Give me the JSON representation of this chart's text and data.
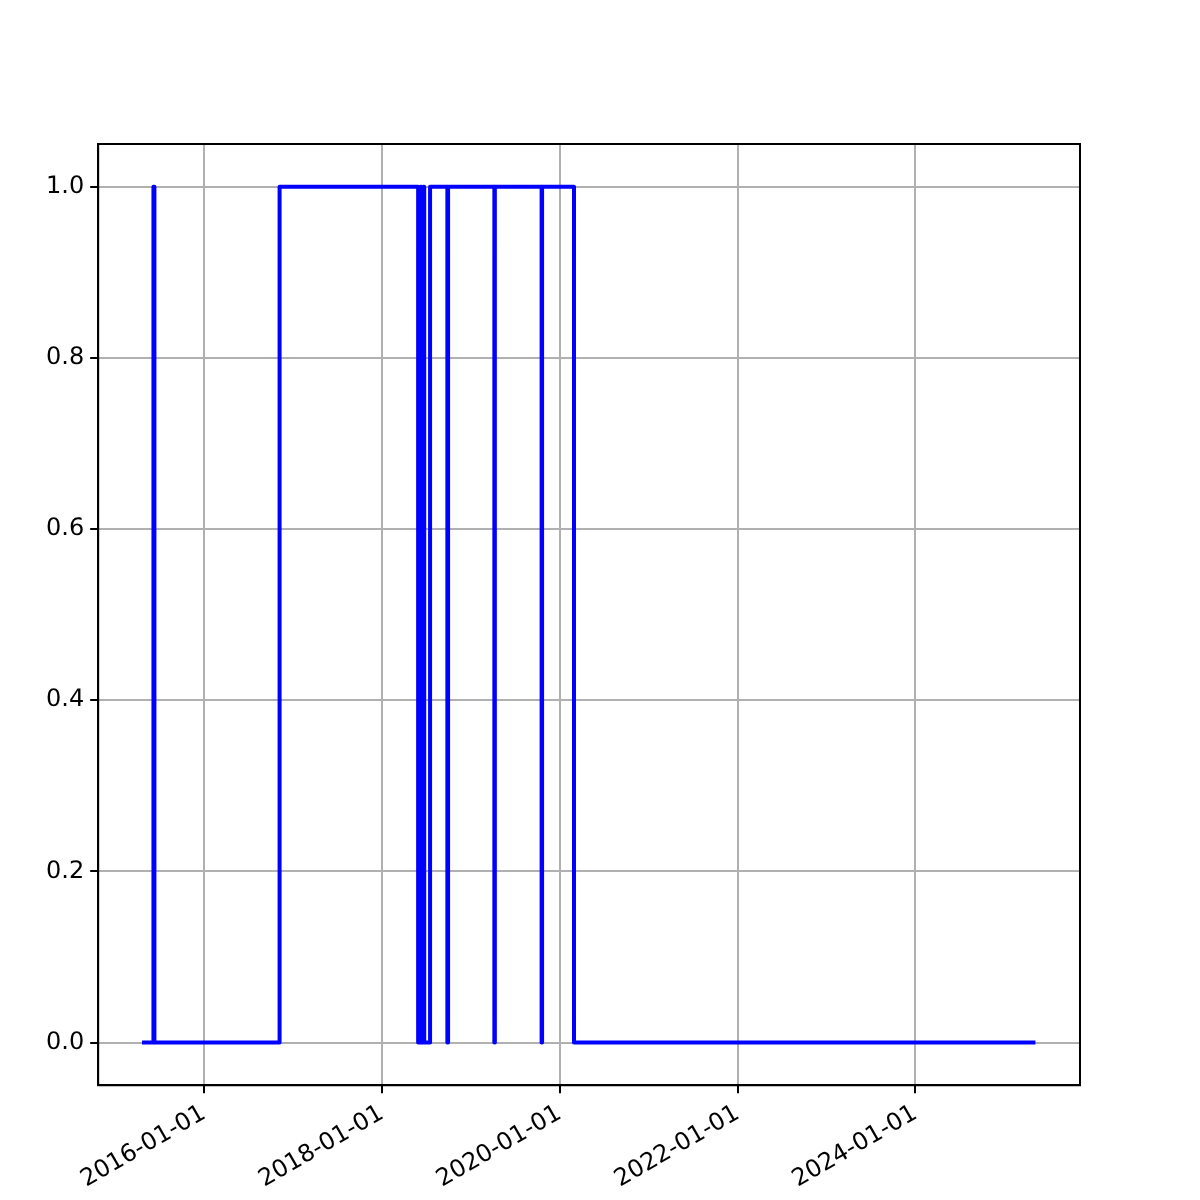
{
  "chart_data": {
    "type": "step",
    "x": [
      "2015-04-22",
      "2015-06-08",
      "2015-06-12",
      "2016-11-07",
      "2018-05-30",
      "2018-06-08",
      "2018-06-12",
      "2018-06-20",
      "2018-06-24",
      "2018-07-18",
      "2018-09-27",
      "2018-09-30",
      "2019-04-08",
      "2019-04-10",
      "2019-10-19",
      "2019-10-21",
      "2020-02-29",
      "2025-05-08"
    ],
    "series": [
      {
        "color": "#0000ff",
        "values": [
          0,
          1,
          0,
          1,
          0,
          1,
          0,
          1,
          0,
          1,
          0,
          1,
          0,
          1,
          0,
          1,
          0,
          0
        ]
      }
    ],
    "xlim": [
      "2014-10-24",
      "2025-11-07"
    ],
    "xticks": [
      "2016-01-01",
      "2018-01-01",
      "2020-01-01",
      "2022-01-01",
      "2024-01-01"
    ],
    "ylim": [
      -0.05,
      1.05
    ],
    "yticks": [
      {
        "value": 0,
        "label": "0.0"
      },
      {
        "value": 0.2,
        "label": "0.2"
      },
      {
        "value": 0.4,
        "label": "0.4"
      },
      {
        "value": 0.6,
        "label": "0.6"
      },
      {
        "value": 0.8,
        "label": "0.8"
      },
      {
        "value": 1,
        "label": "1.0"
      }
    ],
    "grid": true,
    "legend": false,
    "marker": "none",
    "line_style": "solid"
  }
}
